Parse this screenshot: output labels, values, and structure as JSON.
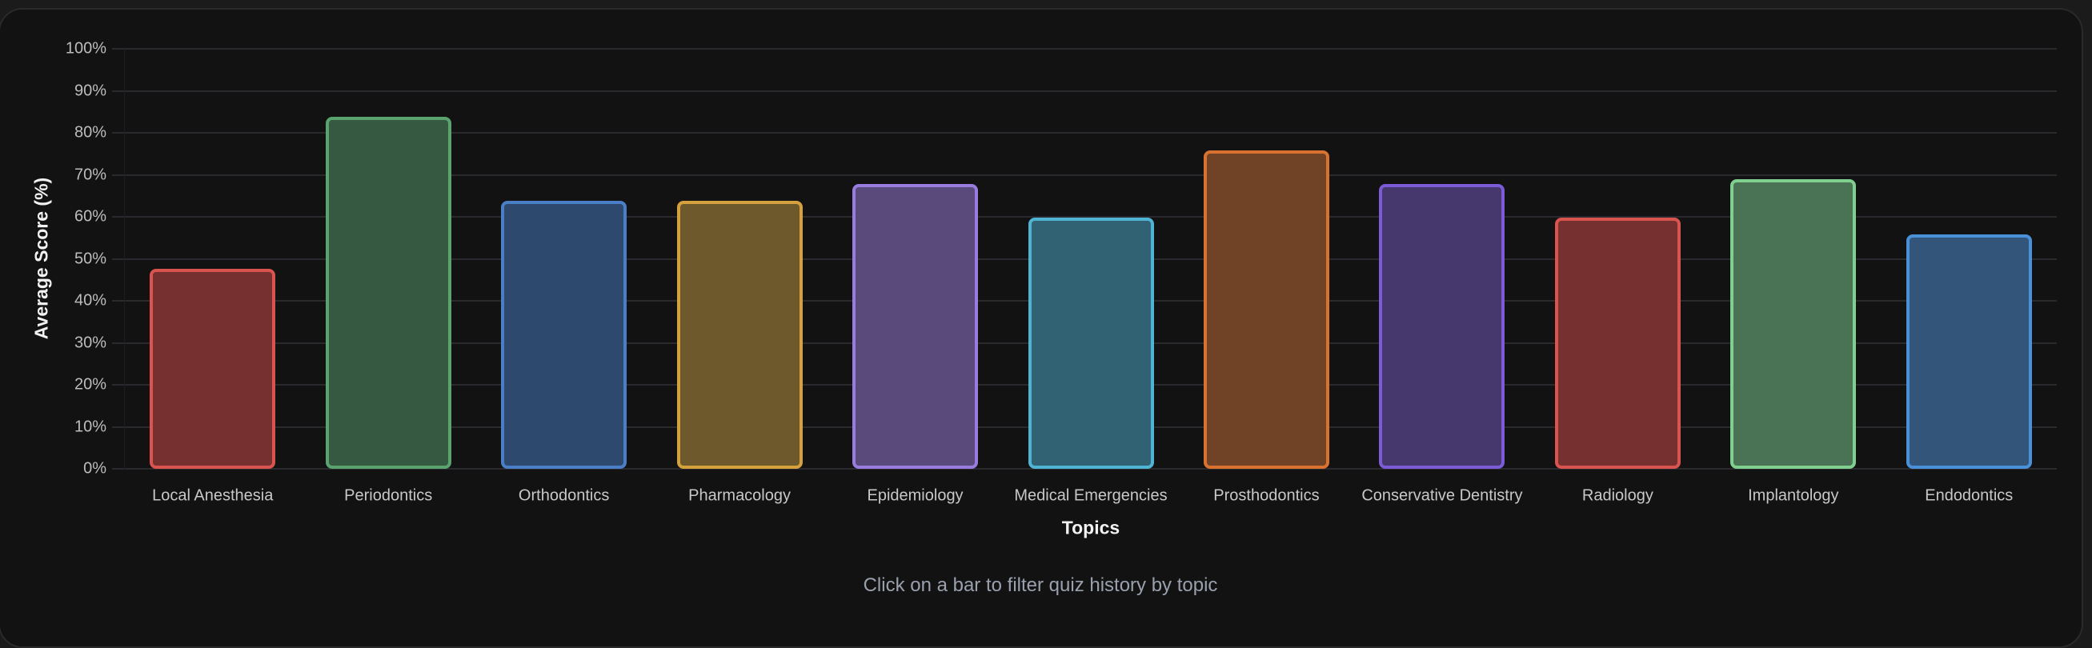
{
  "chart_data": {
    "type": "bar",
    "title": "",
    "xlabel": "Topics",
    "ylabel": "Average Score (%)",
    "ylim": [
      0,
      100
    ],
    "y_ticks": [
      "0%",
      "10%",
      "20%",
      "30%",
      "40%",
      "50%",
      "60%",
      "70%",
      "80%",
      "90%",
      "100%"
    ],
    "grid": true,
    "legend": "none",
    "categories": [
      "Local Anesthesia",
      "Periodontics",
      "Orthodontics",
      "Pharmacology",
      "Epidemiology",
      "Medical Emergencies",
      "Prosthodontics",
      "Conservative Dentistry",
      "Radiology",
      "Implantology",
      "Endodontics"
    ],
    "values": [
      47.7,
      83.8,
      63.8,
      63.8,
      67.8,
      59.8,
      75.9,
      67.8,
      59.8,
      69,
      55.8
    ],
    "colors": [
      {
        "border": "#d9534f",
        "fill": "#76302f"
      },
      {
        "border": "#5aa36f",
        "fill": "#355a41"
      },
      {
        "border": "#4a7fc8",
        "fill": "#2d4a6e"
      },
      {
        "border": "#d4a13d",
        "fill": "#6e592c"
      },
      {
        "border": "#9a7be0",
        "fill": "#5a4a7c"
      },
      {
        "border": "#4fb3d4",
        "fill": "#316273"
      },
      {
        "border": "#d9722f",
        "fill": "#704226"
      },
      {
        "border": "#7b5cd6",
        "fill": "#46376d"
      },
      {
        "border": "#d9534f",
        "fill": "#76302f"
      },
      {
        "border": "#7fcf8e",
        "fill": "#4a7356"
      },
      {
        "border": "#4a90d9",
        "fill": "#33557a"
      }
    ]
  },
  "footer": {
    "hint": "Click on a bar to filter quiz history by topic"
  }
}
